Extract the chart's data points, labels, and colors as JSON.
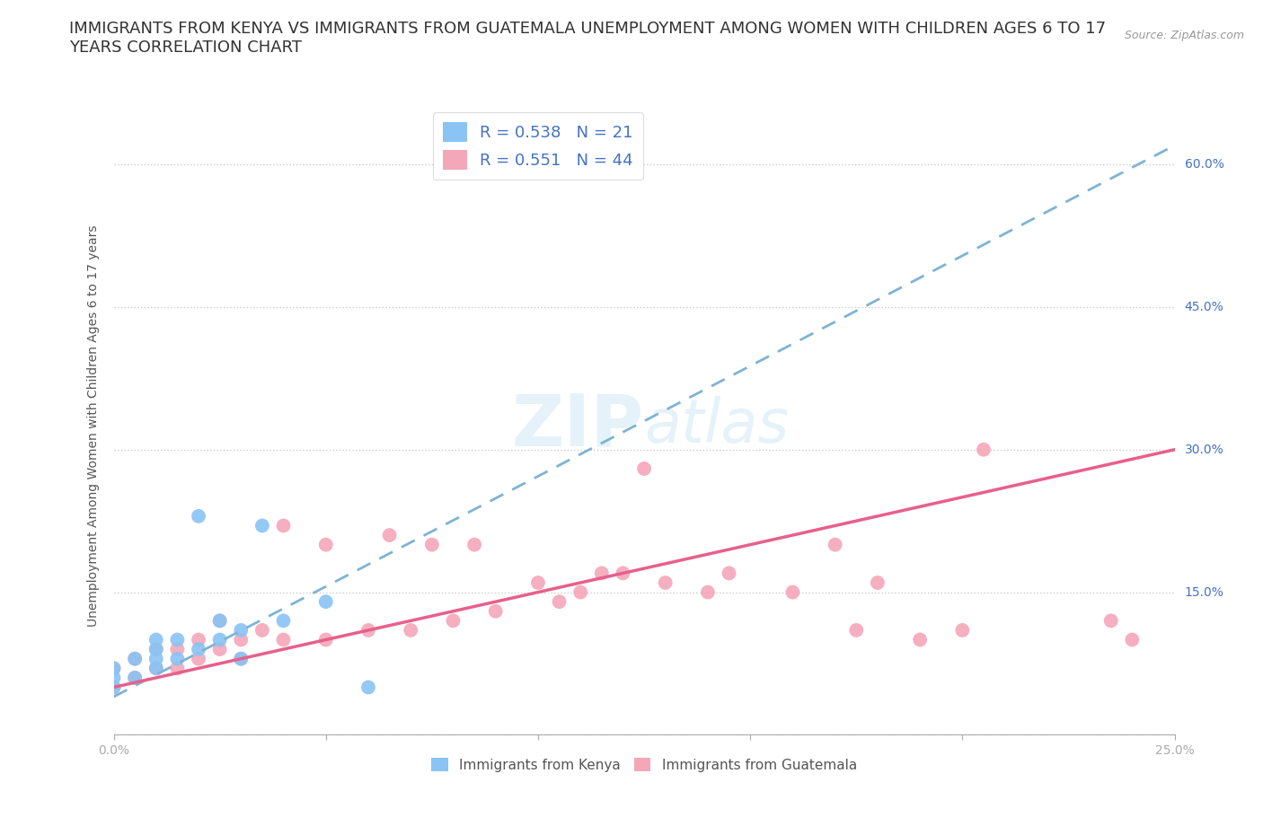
{
  "title": "IMMIGRANTS FROM KENYA VS IMMIGRANTS FROM GUATEMALA UNEMPLOYMENT AMONG WOMEN WITH CHILDREN AGES 6 TO 17\nYEARS CORRELATION CHART",
  "source_text": "Source: ZipAtlas.com",
  "xlabel": "",
  "ylabel": "Unemployment Among Women with Children Ages 6 to 17 years",
  "xlim": [
    0.0,
    0.25
  ],
  "ylim": [
    0.0,
    0.65
  ],
  "xticks": [
    0.0,
    0.05,
    0.1,
    0.15,
    0.2,
    0.25
  ],
  "yticks": [
    0.0,
    0.15,
    0.3,
    0.45,
    0.6
  ],
  "ytick_labels": [
    "",
    "15.0%",
    "30.0%",
    "45.0%",
    "60.0%"
  ],
  "xtick_labels": [
    "0.0%",
    "",
    "",
    "",
    "",
    "25.0%"
  ],
  "kenya_color": "#89C4F4",
  "guatemala_color": "#F4A7B9",
  "kenya_line_color": "#7FB3D3",
  "guatemala_line_color": "#E8608A",
  "kenya_R": 0.538,
  "kenya_N": 21,
  "guatemala_R": 0.551,
  "guatemala_N": 44,
  "kenya_scatter_x": [
    0.0,
    0.0,
    0.0,
    0.005,
    0.005,
    0.01,
    0.01,
    0.01,
    0.01,
    0.015,
    0.015,
    0.02,
    0.02,
    0.025,
    0.025,
    0.03,
    0.03,
    0.035,
    0.04,
    0.05,
    0.06
  ],
  "kenya_scatter_y": [
    0.05,
    0.06,
    0.07,
    0.06,
    0.08,
    0.07,
    0.08,
    0.09,
    0.1,
    0.08,
    0.1,
    0.09,
    0.23,
    0.1,
    0.12,
    0.08,
    0.11,
    0.22,
    0.12,
    0.14,
    0.05
  ],
  "guatemala_scatter_x": [
    0.0,
    0.0,
    0.005,
    0.005,
    0.01,
    0.01,
    0.015,
    0.015,
    0.02,
    0.02,
    0.025,
    0.025,
    0.03,
    0.03,
    0.035,
    0.04,
    0.04,
    0.05,
    0.05,
    0.06,
    0.065,
    0.07,
    0.075,
    0.08,
    0.085,
    0.09,
    0.1,
    0.105,
    0.11,
    0.115,
    0.12,
    0.125,
    0.13,
    0.14,
    0.145,
    0.16,
    0.17,
    0.175,
    0.18,
    0.19,
    0.2,
    0.205,
    0.235,
    0.24
  ],
  "guatemala_scatter_y": [
    0.05,
    0.07,
    0.06,
    0.08,
    0.07,
    0.09,
    0.07,
    0.09,
    0.08,
    0.1,
    0.09,
    0.12,
    0.08,
    0.1,
    0.11,
    0.1,
    0.22,
    0.1,
    0.2,
    0.11,
    0.21,
    0.11,
    0.2,
    0.12,
    0.2,
    0.13,
    0.16,
    0.14,
    0.15,
    0.17,
    0.17,
    0.28,
    0.16,
    0.15,
    0.17,
    0.15,
    0.2,
    0.11,
    0.16,
    0.1,
    0.11,
    0.3,
    0.12,
    0.1
  ],
  "kenya_trendline_x": [
    0.0,
    0.25
  ],
  "kenya_trendline_y": [
    0.04,
    0.62
  ],
  "guatemala_trendline_x": [
    0.0,
    0.25
  ],
  "guatemala_trendline_y": [
    0.05,
    0.3
  ],
  "background_color": "#FFFFFF",
  "grid_color": "#CCCCCC",
  "watermark_text": "ZIPatlas",
  "title_fontsize": 13,
  "axis_label_fontsize": 10,
  "tick_fontsize": 10
}
